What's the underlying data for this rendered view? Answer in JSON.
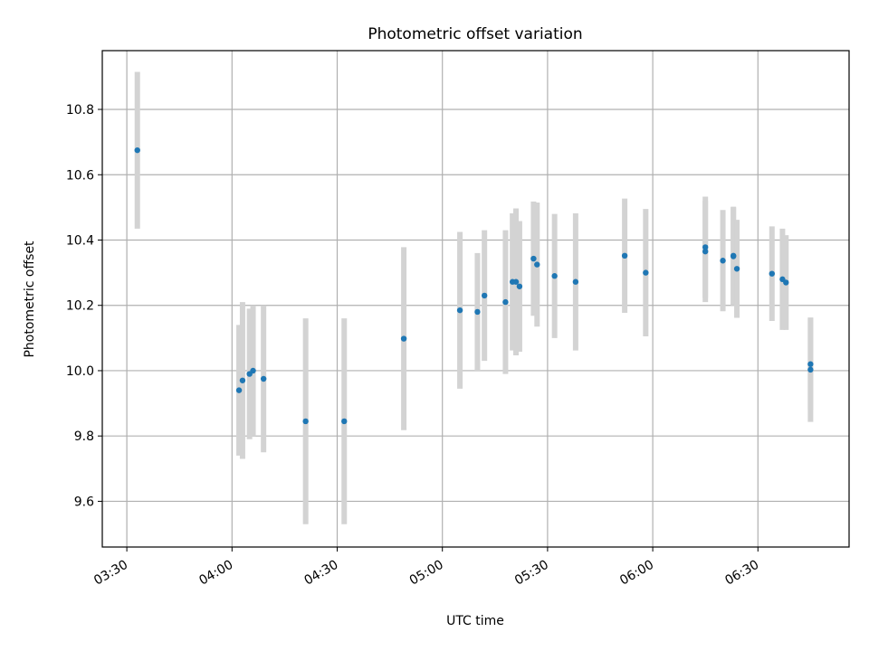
{
  "chart_data": {
    "type": "scatter",
    "title": "Photometric offset variation",
    "xlabel": "UTC time",
    "ylabel": "Photometric offset",
    "x_ticks": [
      "03:30",
      "04:00",
      "04:30",
      "05:00",
      "05:30",
      "06:00",
      "06:30"
    ],
    "y_ticks": [
      "9.6",
      "9.8",
      "10.0",
      "10.2",
      "10.4",
      "10.6",
      "10.8"
    ],
    "xlim": [
      "03:23",
      "06:56"
    ],
    "ylim": [
      9.46,
      10.98
    ],
    "grid": true,
    "colors": {
      "point": "#1f77b4",
      "errorbar": "#d3d3d3",
      "grid": "#b0b0b0"
    },
    "points": [
      {
        "time": "03:33",
        "y": 10.675,
        "err": 0.24
      },
      {
        "time": "04:02",
        "y": 9.94,
        "err": 0.2
      },
      {
        "time": "04:03",
        "y": 9.97,
        "err": 0.24
      },
      {
        "time": "04:05",
        "y": 9.99,
        "err": 0.2
      },
      {
        "time": "04:06",
        "y": 10.0,
        "err": 0.2
      },
      {
        "time": "04:09",
        "y": 9.975,
        "err": 0.225
      },
      {
        "time": "04:21",
        "y": 9.845,
        "err": 0.315
      },
      {
        "time": "04:32",
        "y": 9.845,
        "err": 0.315
      },
      {
        "time": "04:49",
        "y": 10.098,
        "err": 0.28
      },
      {
        "time": "05:05",
        "y": 10.185,
        "err": 0.24
      },
      {
        "time": "05:10",
        "y": 10.18,
        "err": 0.18
      },
      {
        "time": "05:12",
        "y": 10.23,
        "err": 0.2
      },
      {
        "time": "05:18",
        "y": 10.21,
        "err": 0.22
      },
      {
        "time": "05:20",
        "y": 10.272,
        "err": 0.21
      },
      {
        "time": "05:21",
        "y": 10.272,
        "err": 0.225
      },
      {
        "time": "05:22",
        "y": 10.258,
        "err": 0.2
      },
      {
        "time": "05:26",
        "y": 10.343,
        "err": 0.175
      },
      {
        "time": "05:27",
        "y": 10.325,
        "err": 0.19
      },
      {
        "time": "05:32",
        "y": 10.29,
        "err": 0.19
      },
      {
        "time": "05:38",
        "y": 10.272,
        "err": 0.21
      },
      {
        "time": "05:52",
        "y": 10.352,
        "err": 0.175
      },
      {
        "time": "05:58",
        "y": 10.3,
        "err": 0.195
      },
      {
        "time": "06:15",
        "y": 10.365,
        "err": 0.155
      },
      {
        "time": "06:15",
        "y": 10.378,
        "err": 0.155
      },
      {
        "time": "06:20",
        "y": 10.337,
        "err": 0.155
      },
      {
        "time": "06:23",
        "y": 10.352,
        "err": 0.15
      },
      {
        "time": "06:23",
        "y": 10.35,
        "err": 0.15
      },
      {
        "time": "06:24",
        "y": 10.312,
        "err": 0.15
      },
      {
        "time": "06:34",
        "y": 10.297,
        "err": 0.145
      },
      {
        "time": "06:37",
        "y": 10.28,
        "err": 0.155
      },
      {
        "time": "06:38",
        "y": 10.27,
        "err": 0.145
      },
      {
        "time": "06:45",
        "y": 10.02,
        "err": 0.14
      },
      {
        "time": "06:45",
        "y": 10.003,
        "err": 0.16
      }
    ]
  }
}
